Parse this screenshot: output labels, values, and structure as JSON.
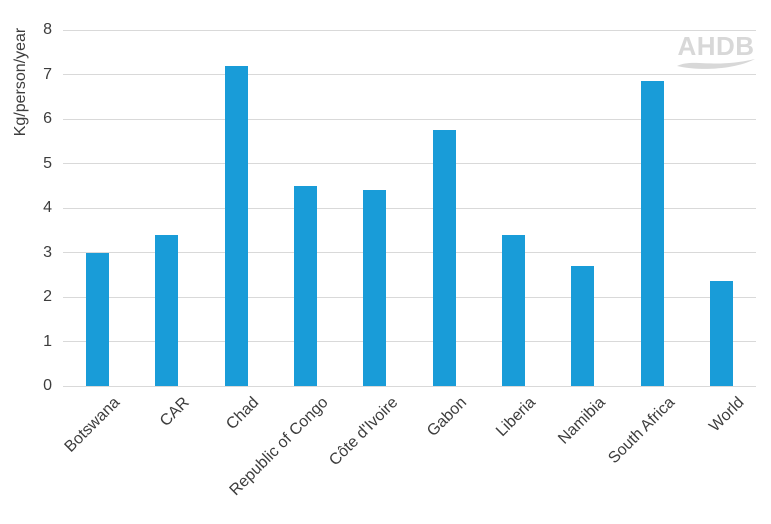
{
  "chart_data": {
    "type": "bar",
    "title": "",
    "xlabel": "",
    "ylabel": "Kg/person/year",
    "ylim": [
      0,
      8
    ],
    "ytick_step": 1,
    "grid": "horizontal",
    "legend_position": "none",
    "categories": [
      "Botswana",
      "CAR",
      "Chad",
      "Republic of Congo",
      "Côte d'Ivoire",
      "Gabon",
      "Liberia",
      "Namibia",
      "South Africa",
      "World"
    ],
    "values": [
      3.0,
      3.4,
      7.2,
      4.5,
      4.4,
      5.75,
      3.4,
      2.7,
      6.85,
      2.35
    ]
  },
  "watermark": {
    "text": "AHDB"
  },
  "colors": {
    "bar": "#199CD8",
    "gridline": "#D9D9D9",
    "axis_text": "#3D3D3D",
    "watermark": "#D8D8D8",
    "background": "#FFFFFF"
  }
}
